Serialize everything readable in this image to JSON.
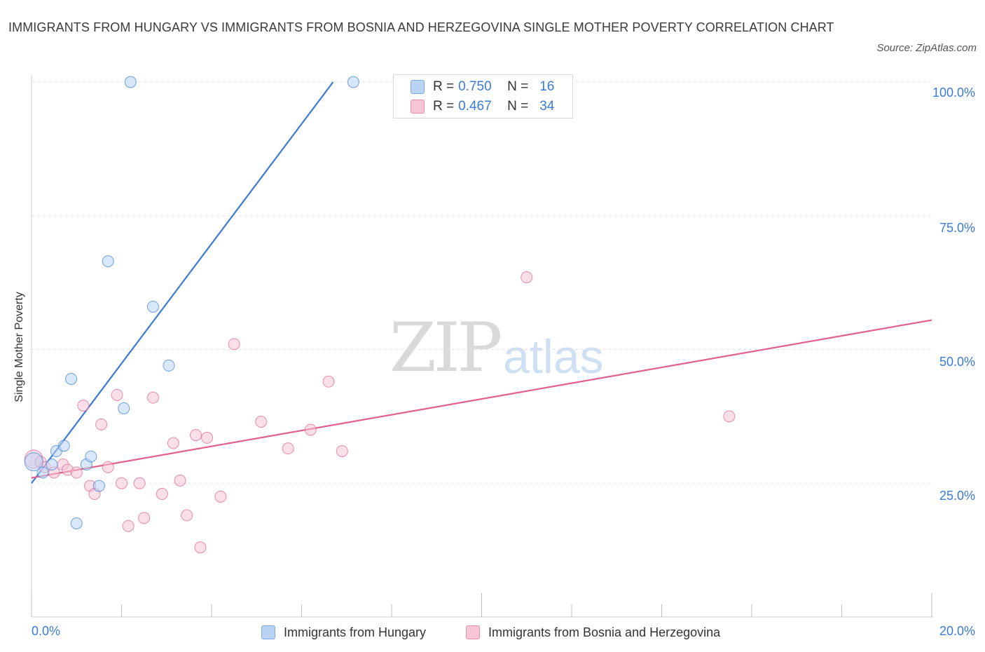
{
  "chart_data": {
    "type": "scatter",
    "title": "IMMIGRANTS FROM HUNGARY VS IMMIGRANTS FROM BOSNIA AND HERZEGOVINA SINGLE MOTHER POVERTY CORRELATION CHART",
    "source": "Source: ZipAtlas.com",
    "ylabel": "Single Mother Poverty",
    "xlim": [
      0,
      20
    ],
    "ylim": [
      0,
      100
    ],
    "x_tick_labels": {
      "min": "0.0%",
      "max": "20.0%"
    },
    "y_tick_labels": [
      "100.0%",
      "75.0%",
      "50.0%",
      "25.0%"
    ],
    "y_tick_values": [
      100,
      75,
      50,
      25
    ],
    "watermark": {
      "zip": "ZIP",
      "atlas": "atlas"
    },
    "legend": {
      "rows": [
        {
          "r_label": "R = ",
          "r_value": "0.750",
          "n_label": "N = ",
          "n_value": "16"
        },
        {
          "r_label": "R = ",
          "r_value": "0.467",
          "n_label": "N = ",
          "n_value": "34"
        }
      ]
    },
    "series": [
      {
        "name": "Immigrants from Hungary",
        "color": "#3a7bd5",
        "fill": "#b9d3f5",
        "trend": {
          "x": [
            0.0,
            6.7
          ],
          "y": [
            25.0,
            100.0
          ]
        },
        "points": [
          {
            "x": 0.05,
            "y": 29.0,
            "big": true
          },
          {
            "x": 0.25,
            "y": 27.0
          },
          {
            "x": 0.45,
            "y": 28.5
          },
          {
            "x": 0.55,
            "y": 31.0
          },
          {
            "x": 0.72,
            "y": 32.0
          },
          {
            "x": 0.88,
            "y": 44.5
          },
          {
            "x": 1.0,
            "y": 17.5
          },
          {
            "x": 1.22,
            "y": 28.5
          },
          {
            "x": 1.32,
            "y": 30.0
          },
          {
            "x": 1.5,
            "y": 24.5
          },
          {
            "x": 1.7,
            "y": 66.5
          },
          {
            "x": 2.05,
            "y": 39.0
          },
          {
            "x": 2.2,
            "y": 100.0
          },
          {
            "x": 2.7,
            "y": 58.0
          },
          {
            "x": 3.05,
            "y": 47.0
          },
          {
            "x": 7.15,
            "y": 100.0
          }
        ]
      },
      {
        "name": "Immigrants from Bosnia and Herzegovina",
        "color": "#e0608f",
        "fill": "#f7c5d6",
        "trend": {
          "x": [
            0.0,
            20.0
          ],
          "y": [
            26.0,
            55.5
          ]
        },
        "points": [
          {
            "x": 0.05,
            "y": 29.5,
            "big": true
          },
          {
            "x": 0.2,
            "y": 29.0
          },
          {
            "x": 0.5,
            "y": 27.0
          },
          {
            "x": 0.7,
            "y": 28.5
          },
          {
            "x": 0.8,
            "y": 27.5
          },
          {
            "x": 1.0,
            "y": 27.0
          },
          {
            "x": 1.15,
            "y": 39.5
          },
          {
            "x": 1.3,
            "y": 24.5
          },
          {
            "x": 1.4,
            "y": 23.0
          },
          {
            "x": 1.55,
            "y": 36.0
          },
          {
            "x": 1.7,
            "y": 28.0
          },
          {
            "x": 1.9,
            "y": 41.5
          },
          {
            "x": 2.0,
            "y": 25.0
          },
          {
            "x": 2.15,
            "y": 17.0
          },
          {
            "x": 2.4,
            "y": 25.0
          },
          {
            "x": 2.5,
            "y": 18.5
          },
          {
            "x": 2.7,
            "y": 41.0
          },
          {
            "x": 2.9,
            "y": 23.0
          },
          {
            "x": 3.15,
            "y": 32.5
          },
          {
            "x": 3.3,
            "y": 25.5
          },
          {
            "x": 3.45,
            "y": 19.0
          },
          {
            "x": 3.65,
            "y": 34.0
          },
          {
            "x": 3.75,
            "y": 13.0
          },
          {
            "x": 3.9,
            "y": 33.5
          },
          {
            "x": 4.2,
            "y": 22.5
          },
          {
            "x": 4.5,
            "y": 51.0
          },
          {
            "x": 5.1,
            "y": 36.5
          },
          {
            "x": 5.7,
            "y": 31.5
          },
          {
            "x": 6.2,
            "y": 35.0
          },
          {
            "x": 6.6,
            "y": 44.0
          },
          {
            "x": 6.9,
            "y": 31.0
          },
          {
            "x": 11.0,
            "y": 63.5
          },
          {
            "x": 15.5,
            "y": 37.5
          },
          {
            "x": 0.3,
            "y": 28.0
          }
        ]
      }
    ]
  }
}
